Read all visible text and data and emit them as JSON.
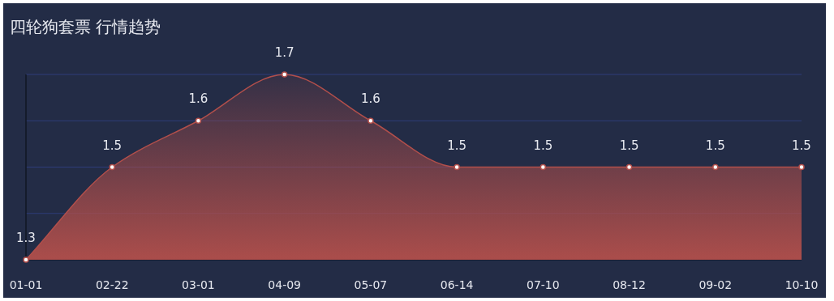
{
  "chart_data": {
    "type": "area",
    "title": "四轮狗套票 行情趋势",
    "categories": [
      "01-01",
      "02-22",
      "03-01",
      "04-09",
      "05-07",
      "06-14",
      "07-10",
      "08-12",
      "09-02",
      "10-10"
    ],
    "series": [
      {
        "color": "#b24f4b",
        "values": [
          1.3,
          1.5,
          1.6,
          1.7,
          1.6,
          1.5,
          1.5,
          1.5,
          1.5,
          1.5
        ]
      }
    ],
    "ylim": [
      1.3,
      1.7
    ],
    "yticks": [
      {
        "value": 1.3,
        "label": null
      },
      {
        "value": 1.4,
        "label": null
      },
      {
        "value": 1.5,
        "label": null
      },
      {
        "value": 1.6,
        "label": null
      },
      {
        "value": 1.7,
        "label": null
      }
    ],
    "grid": "y",
    "data_labels": true,
    "marker": "circle"
  }
}
